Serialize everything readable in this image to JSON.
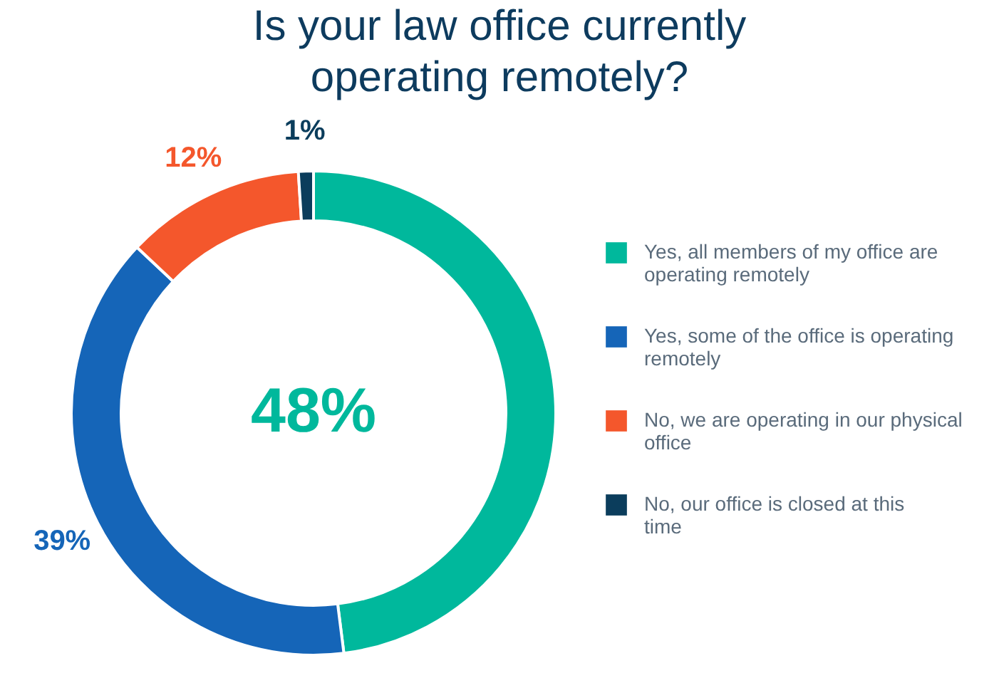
{
  "chart_data": {
    "type": "donut",
    "title": "Is your law office currently operating remotely?",
    "categories": [
      "Yes, all members of my office are operating remotely",
      "Yes, some of the office is operating remotely",
      "No, we are operating in our physical office",
      "No, our office is closed at this time"
    ],
    "values": [
      48,
      39,
      12,
      1
    ],
    "colors": [
      "#00b89c",
      "#1565b8",
      "#f4572c",
      "#0b3d5c"
    ],
    "value_labels": [
      "48%",
      "39%",
      "12%",
      "1%"
    ],
    "legend": "right"
  }
}
